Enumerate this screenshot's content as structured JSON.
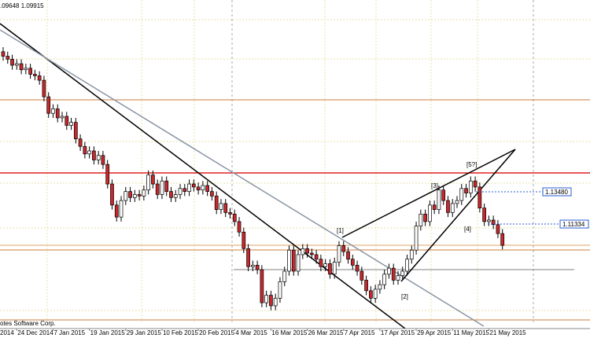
{
  "chart_data": {
    "type": "candlestick",
    "header": ".09648 1.09915",
    "footer": "otes Software Corp.",
    "clipped_label": "2014",
    "categories": [
      null,
      null,
      null,
      "24 Dec 2014",
      null,
      null,
      null,
      null,
      null,
      null,
      null,
      "7 Jan 2015",
      null,
      null,
      null,
      null,
      null,
      null,
      null,
      "19 Jan 2015",
      null,
      null,
      null,
      null,
      null,
      null,
      null,
      "29 Jan 2015",
      null,
      null,
      null,
      null,
      null,
      null,
      null,
      "10 Feb 2015",
      null,
      null,
      null,
      null,
      null,
      null,
      null,
      "20 Feb 2015",
      null,
      null,
      null,
      null,
      null,
      null,
      null,
      "4 Mar 2015",
      null,
      null,
      null,
      null,
      null,
      null,
      null,
      "16 Mar 2015",
      null,
      null,
      null,
      null,
      null,
      null,
      null,
      "26 Mar 2015",
      null,
      null,
      null,
      null,
      null,
      null,
      null,
      "7 Apr 2015",
      null,
      null,
      null,
      null,
      null,
      null,
      null,
      "17 Apr 2015",
      null,
      null,
      null,
      null,
      null,
      null,
      null,
      "29 Apr 2015",
      null,
      null,
      null,
      null,
      null,
      null,
      null,
      "11 May 2015",
      null,
      null,
      null,
      null,
      null,
      null,
      null,
      "21 May 2015",
      null,
      null,
      null
    ],
    "open": [
      1.228,
      1.225,
      1.223,
      1.219,
      1.22,
      1.216,
      1.217,
      1.213,
      1.212,
      1.209,
      1.198,
      1.187,
      1.19,
      1.184,
      1.185,
      1.179,
      1.181,
      1.17,
      1.165,
      1.16,
      1.162,
      1.156,
      1.159,
      1.153,
      1.14,
      1.126,
      1.118,
      1.129,
      1.135,
      1.131,
      1.133,
      1.132,
      1.136,
      1.146,
      1.14,
      1.133,
      1.142,
      1.135,
      1.131,
      1.133,
      1.137,
      1.135,
      1.14,
      1.138,
      1.136,
      1.139,
      1.135,
      1.132,
      1.123,
      1.127,
      1.121,
      1.12,
      1.115,
      1.108,
      1.097,
      1.085,
      1.086,
      1.083,
      1.061,
      1.066,
      1.059,
      1.064,
      1.075,
      1.082,
      1.096,
      1.082,
      1.093,
      1.097,
      1.094,
      1.093,
      1.09,
      1.085,
      1.087,
      1.08,
      1.088,
      1.099,
      1.095,
      1.09,
      1.086,
      1.082,
      1.076,
      1.069,
      1.064,
      1.07,
      1.073,
      1.08,
      1.084,
      1.076,
      1.079,
      1.082,
      1.09,
      1.096,
      1.112,
      1.12,
      1.115,
      1.126,
      1.123,
      1.136,
      1.129,
      1.121,
      1.127,
      1.129,
      1.137,
      1.134,
      1.142,
      1.138,
      1.124,
      1.115,
      1.116,
      1.113,
      1.107
    ],
    "high": [
      1.231,
      1.228,
      1.226,
      1.223,
      1.223,
      1.22,
      1.22,
      1.216,
      1.215,
      1.212,
      1.201,
      1.193,
      1.193,
      1.188,
      1.188,
      1.184,
      1.184,
      1.173,
      1.168,
      1.165,
      1.165,
      1.162,
      1.162,
      1.156,
      1.143,
      1.129,
      1.132,
      1.138,
      1.138,
      1.136,
      1.136,
      1.139,
      1.149,
      1.149,
      1.143,
      1.145,
      1.145,
      1.138,
      1.136,
      1.14,
      1.14,
      1.143,
      1.143,
      1.141,
      1.142,
      1.142,
      1.138,
      1.135,
      1.13,
      1.13,
      1.124,
      1.123,
      1.118,
      1.111,
      1.1,
      1.089,
      1.089,
      1.086,
      1.069,
      1.069,
      1.067,
      1.078,
      1.085,
      1.099,
      1.099,
      1.096,
      1.1,
      1.1,
      1.097,
      1.096,
      1.093,
      1.09,
      1.09,
      1.091,
      1.102,
      1.102,
      1.098,
      1.093,
      1.089,
      1.085,
      1.079,
      1.072,
      1.073,
      1.076,
      1.083,
      1.087,
      1.087,
      1.082,
      1.085,
      1.093,
      1.099,
      1.115,
      1.123,
      1.123,
      1.129,
      1.129,
      1.139,
      1.139,
      1.132,
      1.13,
      1.132,
      1.14,
      1.14,
      1.145,
      1.145,
      1.141,
      1.127,
      1.119,
      1.119,
      1.116,
      1.11
    ],
    "low": [
      1.222,
      1.22,
      1.216,
      1.216,
      1.213,
      1.213,
      1.21,
      1.209,
      1.206,
      1.195,
      1.184,
      1.184,
      1.181,
      1.181,
      1.176,
      1.176,
      1.167,
      1.162,
      1.157,
      1.157,
      1.153,
      1.153,
      1.15,
      1.137,
      1.123,
      1.115,
      1.115,
      1.126,
      1.128,
      1.128,
      1.129,
      1.129,
      1.133,
      1.137,
      1.13,
      1.13,
      1.132,
      1.128,
      1.128,
      1.13,
      1.132,
      1.132,
      1.135,
      1.133,
      1.133,
      1.132,
      1.129,
      1.12,
      1.12,
      1.118,
      1.117,
      1.112,
      1.105,
      1.094,
      1.082,
      1.082,
      1.08,
      1.058,
      1.058,
      1.056,
      1.056,
      1.061,
      1.072,
      1.079,
      1.079,
      1.079,
      1.09,
      1.091,
      1.09,
      1.087,
      1.082,
      1.082,
      1.077,
      1.077,
      1.085,
      1.092,
      1.087,
      1.083,
      1.079,
      1.073,
      1.066,
      1.061,
      1.061,
      1.067,
      1.07,
      1.077,
      1.073,
      1.073,
      1.076,
      1.079,
      1.087,
      1.093,
      1.109,
      1.112,
      1.112,
      1.12,
      1.12,
      1.126,
      1.118,
      1.118,
      1.124,
      1.126,
      1.131,
      1.131,
      1.135,
      1.121,
      1.112,
      1.112,
      1.11,
      1.104,
      1.09648
    ],
    "close": [
      1.225,
      1.223,
      1.219,
      1.22,
      1.216,
      1.217,
      1.213,
      1.212,
      1.209,
      1.198,
      1.187,
      1.19,
      1.184,
      1.185,
      1.179,
      1.181,
      1.17,
      1.165,
      1.16,
      1.162,
      1.156,
      1.159,
      1.153,
      1.14,
      1.126,
      1.118,
      1.129,
      1.135,
      1.131,
      1.133,
      1.132,
      1.136,
      1.146,
      1.14,
      1.133,
      1.142,
      1.135,
      1.131,
      1.133,
      1.137,
      1.135,
      1.14,
      1.138,
      1.136,
      1.139,
      1.135,
      1.132,
      1.123,
      1.127,
      1.121,
      1.12,
      1.115,
      1.108,
      1.097,
      1.085,
      1.086,
      1.083,
      1.061,
      1.066,
      1.059,
      1.064,
      1.075,
      1.082,
      1.096,
      1.082,
      1.093,
      1.097,
      1.094,
      1.093,
      1.09,
      1.085,
      1.087,
      1.08,
      1.088,
      1.099,
      1.095,
      1.09,
      1.086,
      1.082,
      1.076,
      1.069,
      1.064,
      1.07,
      1.073,
      1.08,
      1.084,
      1.076,
      1.079,
      1.082,
      1.09,
      1.096,
      1.112,
      1.12,
      1.115,
      1.126,
      1.123,
      1.136,
      1.129,
      1.121,
      1.127,
      1.129,
      1.137,
      1.134,
      1.142,
      1.138,
      1.124,
      1.115,
      1.116,
      1.113,
      1.107,
      1.09915
    ],
    "up_color": "#ffffff",
    "down_color": "#c8282d",
    "ylim": [
      1.048,
      1.2624
    ],
    "price_labels": [
      {
        "value": 1.1348,
        "label": "1.13480"
      },
      {
        "value": 1.11334,
        "label": "1.11334"
      }
    ],
    "annotations": [
      "[1]",
      "[2]",
      "[3]",
      "[4]",
      "[5?]"
    ]
  }
}
